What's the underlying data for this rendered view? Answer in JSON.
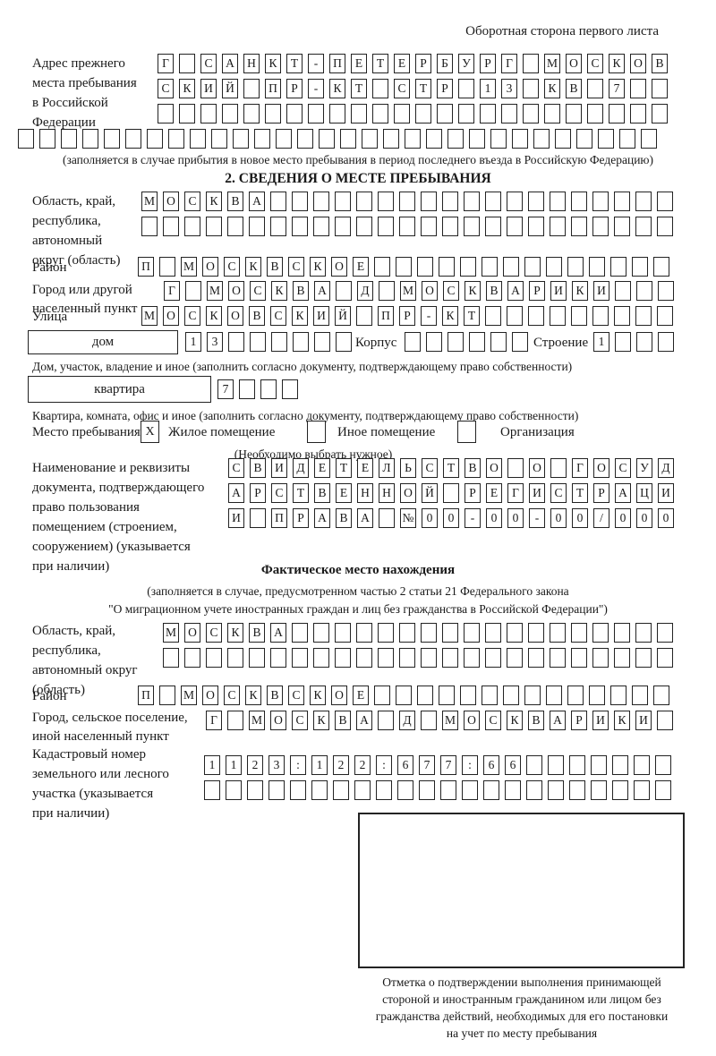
{
  "colors": {
    "ink": "#1a1a1a",
    "border": "#232323",
    "bg": "#ffffff"
  },
  "page": {
    "title": "Оборотная сторона первого листа"
  },
  "prev_address": {
    "label_lines": [
      "Адрес прежнего",
      "места пребывания",
      "в Российской",
      "Федерации"
    ],
    "rows": [
      {
        "text": "Г САНКТ-ПЕТЕРБУРГ МОСКОВ",
        "len": 24
      },
      {
        "text": "СКИЙ ПР-КТ СТР 13 КВ 7",
        "len": 24
      },
      {
        "text": "",
        "len": 24
      }
    ],
    "row_full": {
      "text": "",
      "len": 30
    },
    "note": "(заполняется в случае прибытия в новое место пребывания в период последнего въезда в Российскую Федерацию)"
  },
  "section2": {
    "title": "2. СВЕДЕНИЯ О МЕСТЕ ПРЕБЫВАНИЯ",
    "oblast": {
      "label_lines": [
        "Область, край,",
        "республика,",
        "автономный",
        "округ (область)"
      ],
      "rows": [
        {
          "text": "МОСКВА",
          "len": 25
        },
        {
          "text": "",
          "len": 25
        }
      ]
    },
    "rayon": {
      "label": "Район",
      "row": {
        "text": "П МОСКВСКОЕ",
        "len": 25
      }
    },
    "gorod": {
      "label_lines": [
        "Город или другой",
        "населенный пункт"
      ],
      "row": {
        "text": "Г МОСКВА Д МОСКВАРИКИ",
        "len": 24
      }
    },
    "ulitsa": {
      "label": "Улица",
      "row": {
        "text": "МОСКОВСКИЙ ПР-КТ",
        "len": 25
      }
    },
    "dom": {
      "box_label": "дом",
      "row": {
        "text": "13",
        "len": 8
      },
      "korpus_label": "Корпус",
      "korpus_row": {
        "text": "",
        "len": 6
      },
      "stroenie_label": "Строение",
      "stroenie_row": {
        "text": "1",
        "len": 4
      },
      "caption": "Дом, участок, владение и иное (заполнить согласно документу, подтверждающему право собственности)"
    },
    "kvartira": {
      "box_label": "квартира",
      "row": {
        "text": "7",
        "len": 4
      },
      "caption": "Квартира, комната, офис и иное (заполнить согласно документу, подтверждающему право собственности)"
    },
    "mesto": {
      "intro": "Место пребывания:",
      "options": [
        {
          "mark": "Х",
          "label": "Жилое помещение"
        },
        {
          "mark": "",
          "label": "Иное помещение"
        },
        {
          "mark": "",
          "label": "Организация"
        }
      ],
      "note": "(Необходимо выбрать нужное)"
    },
    "doc": {
      "label_lines": [
        "Наименование и реквизиты",
        "документа, подтверждающего",
        "право пользования",
        "помещением (строением,",
        "сооружением) (указывается",
        "при наличии)"
      ],
      "rows": [
        {
          "text": "СВИДЕТЕЛЬСТВО О ГОСУД",
          "len": 21
        },
        {
          "text": "АРСТВЕННОЙ РЕГИСТРАЦИ",
          "len": 21
        },
        {
          "text": "И ПРАВА №00-00-00/000",
          "len": 21
        }
      ]
    }
  },
  "fact": {
    "title": "Фактическое место нахождения",
    "note_lines": [
      "(заполняется в случае, предусмотренном частью 2 статьи 21 Федерального закона",
      "\"О миграционном учете иностранных граждан и лиц без гражданства в Российской Федерации\")"
    ],
    "oblast": {
      "label_lines": [
        "Область, край,",
        "республика,",
        "автономный округ",
        "(область)"
      ],
      "rows": [
        {
          "text": "МОСКВА",
          "len": 24
        },
        {
          "text": "",
          "len": 24
        }
      ]
    },
    "rayon": {
      "label": "Район",
      "row": {
        "text": "П МОСКВСКОЕ",
        "len": 25
      }
    },
    "gorod": {
      "label_lines": [
        "Город, сельское поселение,",
        "иной населенный пункт"
      ],
      "row": {
        "text": "Г МОСКВА Д МОСКВАРИКИ",
        "len": 22
      }
    },
    "kadastr": {
      "label_lines": [
        "Кадастровый номер",
        "земельного или лесного",
        "участка (указывается",
        "при наличии)"
      ],
      "rows": [
        {
          "text": "1123:122:677:66",
          "len": 22
        },
        {
          "text": "",
          "len": 22
        }
      ]
    }
  },
  "stamp": {
    "caption_lines": [
      "Отметка о подтверждении выполнения принимающей",
      "стороной и иностранным гражданином или лицом без",
      "гражданства действий, необходимых для его постановки",
      "на учет по месту пребывания"
    ]
  }
}
